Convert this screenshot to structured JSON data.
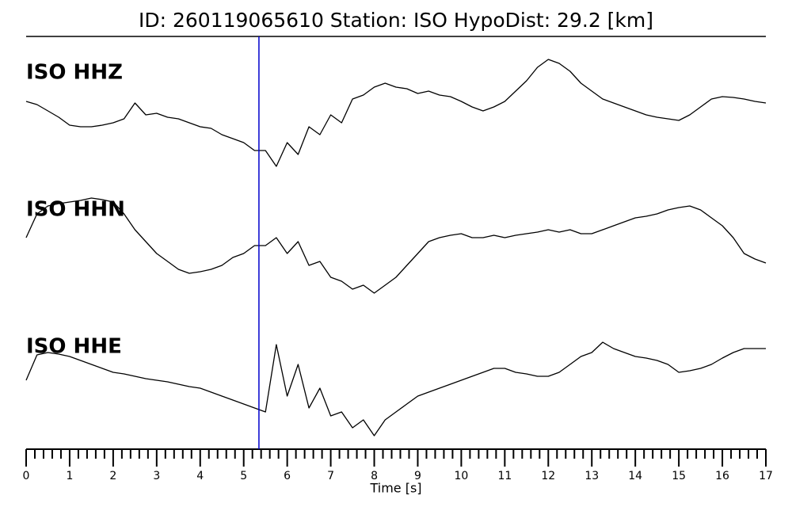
{
  "chart_data": {
    "type": "line",
    "title": "ID: 260119065610   Station: ISO   HypoDist:    29.2 [km]",
    "xlabel": "Time [s]",
    "xlim": [
      0,
      17
    ],
    "xticks": [
      0,
      1,
      2,
      3,
      4,
      5,
      6,
      7,
      8,
      9,
      10,
      11,
      12,
      13,
      14,
      15,
      16,
      17
    ],
    "xminorticks": [
      0.2,
      0.4,
      0.6,
      0.8,
      1.2,
      1.4,
      1.6,
      1.8,
      2.2,
      2.4,
      2.6,
      2.8,
      3.2,
      3.4,
      3.6,
      3.8,
      4.2,
      4.4,
      4.6,
      4.8,
      5.2,
      5.4,
      5.6,
      5.8,
      6.2,
      6.4,
      6.6,
      6.8,
      7.2,
      7.4,
      7.6,
      7.8,
      8.2,
      8.4,
      8.6,
      8.8,
      9.2,
      9.4,
      9.6,
      9.8,
      10.2,
      10.4,
      10.6,
      10.8,
      11.2,
      11.4,
      11.6,
      11.8,
      12.2,
      12.4,
      12.6,
      12.8,
      13.2,
      13.4,
      13.6,
      13.8,
      14.2,
      14.4,
      14.6,
      14.8,
      15.2,
      15.4,
      15.6,
      15.8,
      16.2,
      16.4,
      16.6,
      16.8
    ],
    "ylim": [
      -90,
      90
    ],
    "label_color": "#4e9a06",
    "marker_line": {
      "x": 5.35,
      "color": "#0000cc"
    },
    "x": [
      0,
      0.25,
      0.5,
      0.75,
      1,
      1.25,
      1.5,
      1.75,
      2,
      2.25,
      2.5,
      2.75,
      3,
      3.25,
      3.5,
      3.75,
      4,
      4.25,
      4.5,
      4.75,
      5,
      5.25,
      5.5,
      5.75,
      6,
      6.25,
      6.5,
      6.75,
      7,
      7.25,
      7.5,
      7.75,
      8,
      8.25,
      8.5,
      8.75,
      9,
      9.25,
      9.5,
      9.75,
      10,
      10.25,
      10.5,
      10.75,
      11,
      11.25,
      11.5,
      11.75,
      12,
      12.25,
      12.5,
      12.75,
      13,
      13.25,
      13.5,
      13.75,
      14,
      14.25,
      14.5,
      14.75,
      15,
      15.25,
      15.5,
      15.75,
      16,
      16.25,
      16.5,
      16.75,
      17
    ],
    "series": [
      {
        "name": "ISO HHZ",
        "color": "#000000",
        "values": [
          12,
          8,
          0,
          -8,
          -18,
          -20,
          -20,
          -18,
          -15,
          -10,
          10,
          -5,
          -3,
          -8,
          -10,
          -15,
          -20,
          -22,
          -30,
          -35,
          -40,
          -50,
          -50,
          -70,
          -40,
          -55,
          -20,
          -30,
          -5,
          -15,
          15,
          20,
          30,
          35,
          30,
          28,
          22,
          25,
          20,
          18,
          12,
          5,
          0,
          5,
          12,
          25,
          38,
          55,
          65,
          60,
          50,
          35,
          25,
          15,
          10,
          5,
          0,
          -5,
          -8,
          -10,
          -12,
          -5,
          5,
          15,
          18,
          17,
          15,
          12,
          10
        ]
      },
      {
        "name": "ISO HHN",
        "color": "#000000",
        "values": [
          15,
          45,
          55,
          58,
          60,
          62,
          65,
          63,
          60,
          45,
          25,
          10,
          -5,
          -15,
          -25,
          -30,
          -28,
          -25,
          -20,
          -10,
          -5,
          5,
          5,
          15,
          -5,
          10,
          -20,
          -15,
          -35,
          -40,
          -50,
          -45,
          -55,
          -45,
          -35,
          -20,
          -5,
          10,
          15,
          18,
          20,
          15,
          15,
          18,
          15,
          18,
          20,
          22,
          25,
          22,
          25,
          20,
          20,
          25,
          30,
          35,
          40,
          42,
          45,
          50,
          53,
          55,
          50,
          40,
          30,
          15,
          -5,
          -12,
          -17
        ]
      },
      {
        "name": "ISO HHE",
        "color": "#000000",
        "values": [
          10,
          42,
          45,
          43,
          40,
          35,
          30,
          25,
          20,
          18,
          15,
          12,
          10,
          8,
          5,
          2,
          0,
          -5,
          -10,
          -15,
          -20,
          -25,
          -30,
          55,
          -10,
          30,
          -25,
          0,
          -35,
          -30,
          -50,
          -40,
          -60,
          -40,
          -30,
          -20,
          -10,
          -5,
          0,
          5,
          10,
          15,
          20,
          25,
          25,
          20,
          18,
          15,
          15,
          20,
          30,
          40,
          45,
          58,
          50,
          45,
          40,
          38,
          35,
          30,
          20,
          22,
          25,
          30,
          38,
          45,
          50,
          50,
          50
        ]
      }
    ]
  }
}
